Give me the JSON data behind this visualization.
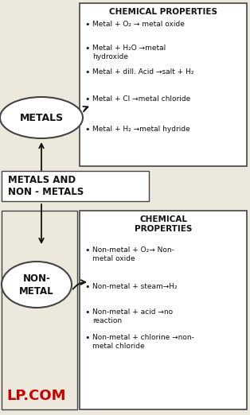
{
  "bg_color": "#ede8dc",
  "title_metals_box": "CHEMICAL PROPERTIES",
  "metals_bullets": [
    "Metal + O₂ → metal oxide",
    "Metal + H₂O →metal\nhydroxide",
    "Metal + dill. Acid →salt + H₂",
    "Metal + Cl →metal chloride",
    "Metal + H₂ →metal hydride"
  ],
  "metals_label": "METALS",
  "center_label_line1": "METALS AND",
  "center_label_line2": "NON - METALS",
  "title_nonmetals_box": "CHEMICAL\nPROPERTIES",
  "nonmetals_bullets": [
    "Non-metal + O₂→ Non-\nmetal oxide",
    "Non-metal + steam→H₂",
    "Non-metal + acid →no\nreaction",
    "Non-metal + chlorine →non-\nmetal chloride"
  ],
  "nonmetals_label": "NON-\nMETAL",
  "watermark": "LP.COM",
  "watermark_color": "#cc0000",
  "box_color": "#ffffff",
  "box_edge_color": "#444444",
  "text_color": "#111111",
  "arrow_color": "#111111",
  "fig_w": 3.14,
  "fig_h": 5.22,
  "dpi": 100
}
